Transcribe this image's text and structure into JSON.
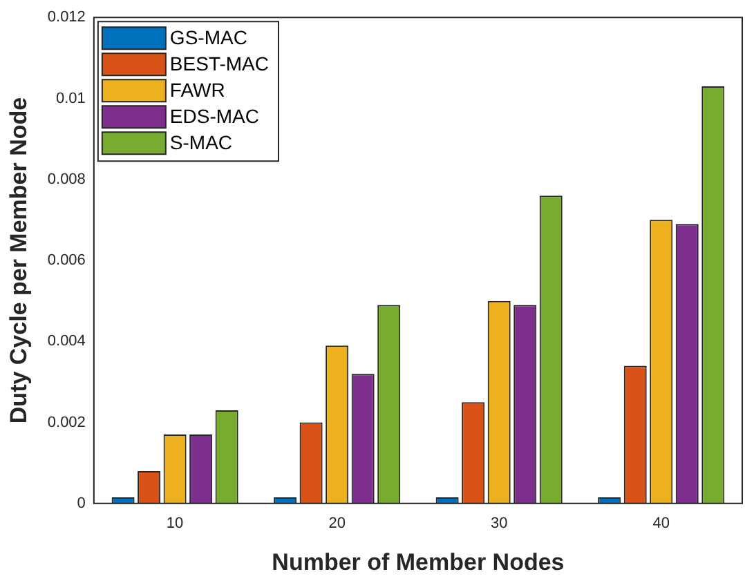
{
  "chart_data": {
    "type": "bar",
    "xlabel": "Number of Member Nodes",
    "ylabel": "Duty Cycle per Member Node",
    "categories": [
      "10",
      "20",
      "30",
      "40"
    ],
    "series": [
      {
        "name": "GS-MAC",
        "color": "#0072bd",
        "values": [
          0.00015,
          0.00015,
          0.00015,
          0.00015
        ]
      },
      {
        "name": "BEST-MAC",
        "color": "#d95319",
        "values": [
          0.0008,
          0.002,
          0.0025,
          0.0034
        ]
      },
      {
        "name": "FAWR",
        "color": "#edb120",
        "values": [
          0.0017,
          0.0039,
          0.005,
          0.007
        ]
      },
      {
        "name": "EDS-MAC",
        "color": "#7e2f8e",
        "values": [
          0.0017,
          0.0032,
          0.0049,
          0.0069
        ]
      },
      {
        "name": "S-MAC",
        "color": "#77ac30",
        "values": [
          0.0023,
          0.0049,
          0.0076,
          0.0103
        ]
      }
    ],
    "ylim": [
      0,
      0.012
    ],
    "yticks": [
      0,
      0.002,
      0.004,
      0.006,
      0.008,
      0.01,
      0.012
    ],
    "legend": "top left",
    "grid": false
  }
}
